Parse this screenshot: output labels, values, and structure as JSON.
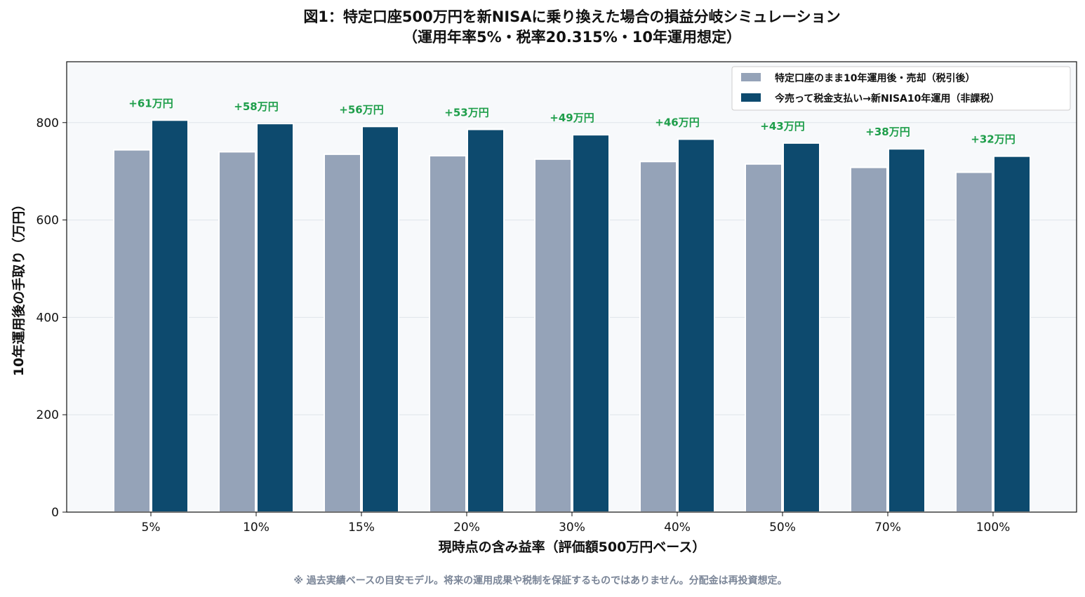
{
  "chart_data": {
    "type": "bar",
    "title": "図1：特定口座500万円を新NISAに乗り換えた場合の損益分岐シミュレーション",
    "subtitle": "（運用年率5%・税率20.315%・10年運用想定）",
    "xlabel": "現時点の含み益率（評価額500万円ベース）",
    "ylabel": "10年運用後の手取り（万円）",
    "categories": [
      "5%",
      "10%",
      "15%",
      "20%",
      "30%",
      "40%",
      "50%",
      "70%",
      "100%"
    ],
    "series": [
      {
        "name": "特定口座のまま10年運用後・売却（税引後）",
        "color": "#95a3b8",
        "values": [
          744,
          740,
          735,
          732,
          725,
          720,
          715,
          708,
          698
        ]
      },
      {
        "name": "今売って税金支払い→新NISA10年運用（非課税）",
        "color": "#0d4a6e",
        "values": [
          805,
          798,
          792,
          786,
          775,
          766,
          758,
          746,
          731
        ]
      }
    ],
    "annotations": [
      "+61万円",
      "+58万円",
      "+56万円",
      "+53万円",
      "+49万円",
      "+46万円",
      "+43万円",
      "+38万円",
      "+32万円"
    ],
    "annotation_color": "#1e9e4a",
    "ylim": [
      0,
      925
    ],
    "yticks": [
      0,
      200,
      400,
      600,
      800
    ],
    "grid": true,
    "legend_position": "top-right",
    "plot_background": "#f7f9fb"
  },
  "footnote": "※ 過去実績ベースの目安モデル。将来の運用成果や税制を保証するものではありません。分配金は再投資想定。"
}
